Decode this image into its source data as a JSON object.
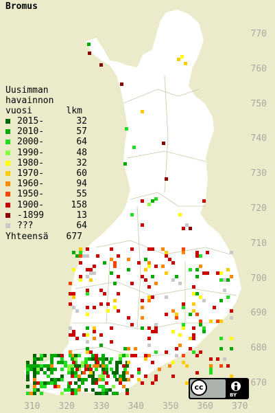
{
  "title": "Bromus",
  "legend": {
    "header": [
      "Uusimman",
      "havainnon"
    ],
    "col_year": "vuosi",
    "col_count": "lkm",
    "rows": [
      {
        "label": "2015-",
        "count": "32",
        "color": "#006600"
      },
      {
        "label": "2010-",
        "count": "57",
        "color": "#00aa00"
      },
      {
        "label": "2000-",
        "count": "64",
        "color": "#22dd22"
      },
      {
        "label": "1990-",
        "count": "48",
        "color": "#88ff44"
      },
      {
        "label": "1980-",
        "count": "32",
        "color": "#ffff00"
      },
      {
        "label": "1970-",
        "count": "60",
        "color": "#ffcc00"
      },
      {
        "label": "1960-",
        "count": "94",
        "color": "#ff8800"
      },
      {
        "label": "1950-",
        "count": "55",
        "color": "#ff4400"
      },
      {
        "label": "1900-",
        "count": "158",
        "color": "#cc0000"
      },
      {
        "label": "-1899",
        "count": "13",
        "color": "#880000"
      },
      {
        "label": "???",
        "count": "64",
        "color": "#c8c8c8"
      }
    ],
    "total_label": "Yhteensä",
    "total_count": "677"
  },
  "axes": {
    "y_labels": [
      "770",
      "760",
      "750",
      "740",
      "730",
      "720",
      "710",
      "700",
      "690",
      "680",
      "670"
    ],
    "x_labels": [
      "310",
      "320",
      "330",
      "340",
      "350",
      "360",
      "370"
    ]
  },
  "license": {
    "icon": "cc-by-icon",
    "text": "BY"
  },
  "colors": {
    "background": "#ebebcc",
    "land": "#ffffff",
    "grid": "#c8c8a8"
  }
}
